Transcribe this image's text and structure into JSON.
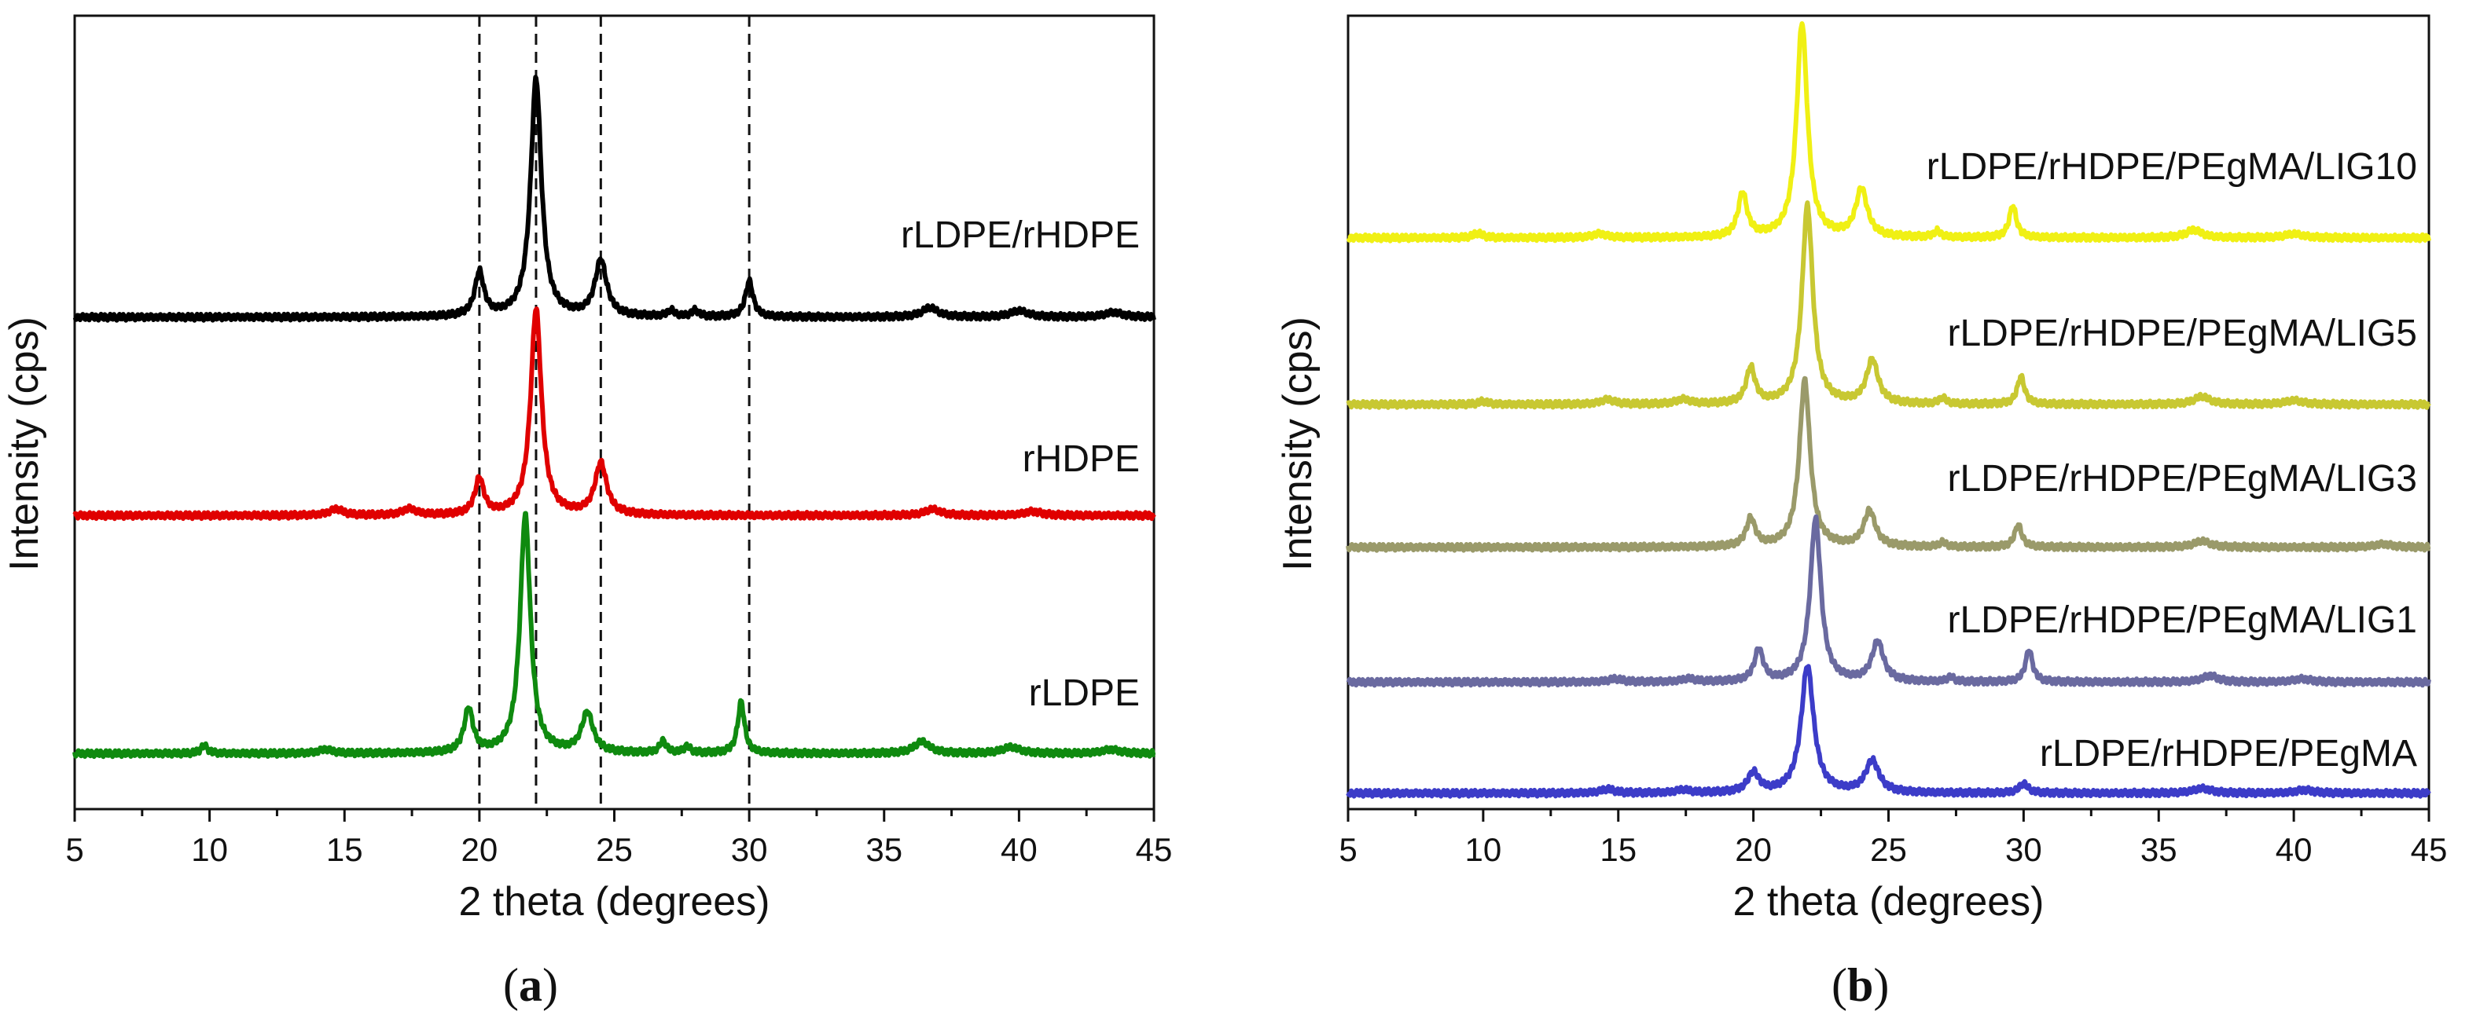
{
  "chart_data": [
    {
      "panel": "a",
      "type": "line",
      "xlabel": "2 theta (degrees)",
      "ylabel": "Intensity (cps)",
      "xlim": [
        5,
        45
      ],
      "x_ticks": [
        5,
        10,
        15,
        20,
        25,
        30,
        35,
        40,
        45
      ],
      "y_tick_labels": "none",
      "grid": false,
      "reference_lines_x": [
        20.0,
        22.1,
        24.5,
        30.0
      ],
      "series": [
        {
          "name": "rLDPE/rHDPE",
          "color": "#000000",
          "baseline": 0.62,
          "peaks": [
            [
              20.0,
              0.055,
              0.2
            ],
            [
              22.1,
              0.3,
              0.24
            ],
            [
              24.5,
              0.07,
              0.26
            ],
            [
              27.1,
              0.008,
              0.15
            ],
            [
              28.0,
              0.008,
              0.15
            ],
            [
              30.0,
              0.045,
              0.17
            ],
            [
              36.7,
              0.012,
              0.35
            ],
            [
              40.0,
              0.008,
              0.4
            ],
            [
              43.5,
              0.006,
              0.4
            ]
          ]
        },
        {
          "name": "rHDPE",
          "color": "#e00000",
          "baseline": 0.37,
          "peaks": [
            [
              14.7,
              0.008,
              0.3
            ],
            [
              17.4,
              0.008,
              0.3
            ],
            [
              20.0,
              0.045,
              0.2
            ],
            [
              22.1,
              0.26,
              0.24
            ],
            [
              24.5,
              0.065,
              0.26
            ],
            [
              36.8,
              0.008,
              0.35
            ],
            [
              40.5,
              0.005,
              0.4
            ]
          ]
        },
        {
          "name": "rLDPE",
          "color": "#0f8a0f",
          "baseline": 0.07,
          "peaks": [
            [
              9.8,
              0.01,
              0.15
            ],
            [
              14.3,
              0.005,
              0.3
            ],
            [
              19.6,
              0.055,
              0.2
            ],
            [
              21.7,
              0.3,
              0.23
            ],
            [
              24.0,
              0.05,
              0.26
            ],
            [
              26.8,
              0.015,
              0.15
            ],
            [
              27.7,
              0.008,
              0.15
            ],
            [
              29.7,
              0.065,
              0.15
            ],
            [
              36.4,
              0.015,
              0.35
            ],
            [
              39.7,
              0.008,
              0.4
            ],
            [
              43.4,
              0.005,
              0.4
            ]
          ]
        }
      ]
    },
    {
      "panel": "b",
      "type": "line",
      "xlabel": "2 theta (degrees)",
      "ylabel": "Intensity (cps)",
      "xlim": [
        5,
        45
      ],
      "x_ticks": [
        5,
        10,
        15,
        20,
        25,
        30,
        35,
        40,
        45
      ],
      "y_tick_labels": "none",
      "grid": false,
      "series": [
        {
          "name": "rLDPE/rHDPE/PEgMA/LIG10",
          "color": "#f0f014",
          "baseline": 0.72,
          "peaks": [
            [
              9.8,
              0.006,
              0.2
            ],
            [
              14.3,
              0.005,
              0.3
            ],
            [
              19.6,
              0.055,
              0.2
            ],
            [
              21.8,
              0.27,
              0.24
            ],
            [
              24.0,
              0.06,
              0.26
            ],
            [
              26.8,
              0.008,
              0.15
            ],
            [
              29.6,
              0.04,
              0.16
            ],
            [
              36.3,
              0.01,
              0.35
            ],
            [
              40.0,
              0.005,
              0.4
            ]
          ]
        },
        {
          "name": "rLDPE/rHDPE/PEgMA/LIG5",
          "color": "#c8c832",
          "baseline": 0.51,
          "peaks": [
            [
              10.0,
              0.004,
              0.2
            ],
            [
              14.6,
              0.006,
              0.3
            ],
            [
              17.4,
              0.006,
              0.3
            ],
            [
              19.9,
              0.045,
              0.2
            ],
            [
              22.0,
              0.25,
              0.24
            ],
            [
              24.4,
              0.055,
              0.26
            ],
            [
              27.0,
              0.008,
              0.15
            ],
            [
              29.9,
              0.035,
              0.16
            ],
            [
              36.6,
              0.01,
              0.35
            ],
            [
              40.0,
              0.005,
              0.4
            ]
          ]
        },
        {
          "name": "rLDPE/rHDPE/PEgMA/LIG3",
          "color": "#9a9a6a",
          "baseline": 0.33,
          "peaks": [
            [
              19.9,
              0.035,
              0.2
            ],
            [
              21.9,
              0.21,
              0.24
            ],
            [
              24.3,
              0.045,
              0.26
            ],
            [
              27.0,
              0.006,
              0.15
            ],
            [
              29.8,
              0.028,
              0.16
            ],
            [
              36.6,
              0.008,
              0.35
            ],
            [
              43.3,
              0.004,
              0.4
            ]
          ]
        },
        {
          "name": "rLDPE/rHDPE/PEgMA/LIG1",
          "color": "#6a6aa0",
          "baseline": 0.16,
          "peaks": [
            [
              14.9,
              0.004,
              0.3
            ],
            [
              17.6,
              0.004,
              0.3
            ],
            [
              20.2,
              0.04,
              0.2
            ],
            [
              22.3,
              0.205,
              0.24
            ],
            [
              24.6,
              0.05,
              0.26
            ],
            [
              27.3,
              0.006,
              0.15
            ],
            [
              30.2,
              0.04,
              0.16
            ],
            [
              36.9,
              0.008,
              0.35
            ],
            [
              40.3,
              0.004,
              0.4
            ]
          ]
        },
        {
          "name": "rLDPE/rHDPE/PEgMA",
          "color": "#3c3cc8",
          "baseline": 0.02,
          "peaks": [
            [
              14.6,
              0.005,
              0.3
            ],
            [
              17.4,
              0.004,
              0.3
            ],
            [
              20.0,
              0.025,
              0.25
            ],
            [
              22.0,
              0.16,
              0.28
            ],
            [
              24.4,
              0.04,
              0.3
            ],
            [
              30.0,
              0.012,
              0.2
            ],
            [
              36.6,
              0.006,
              0.4
            ],
            [
              40.4,
              0.004,
              0.4
            ]
          ]
        }
      ]
    }
  ],
  "captions": {
    "a": "(a)",
    "b": "(b)"
  }
}
